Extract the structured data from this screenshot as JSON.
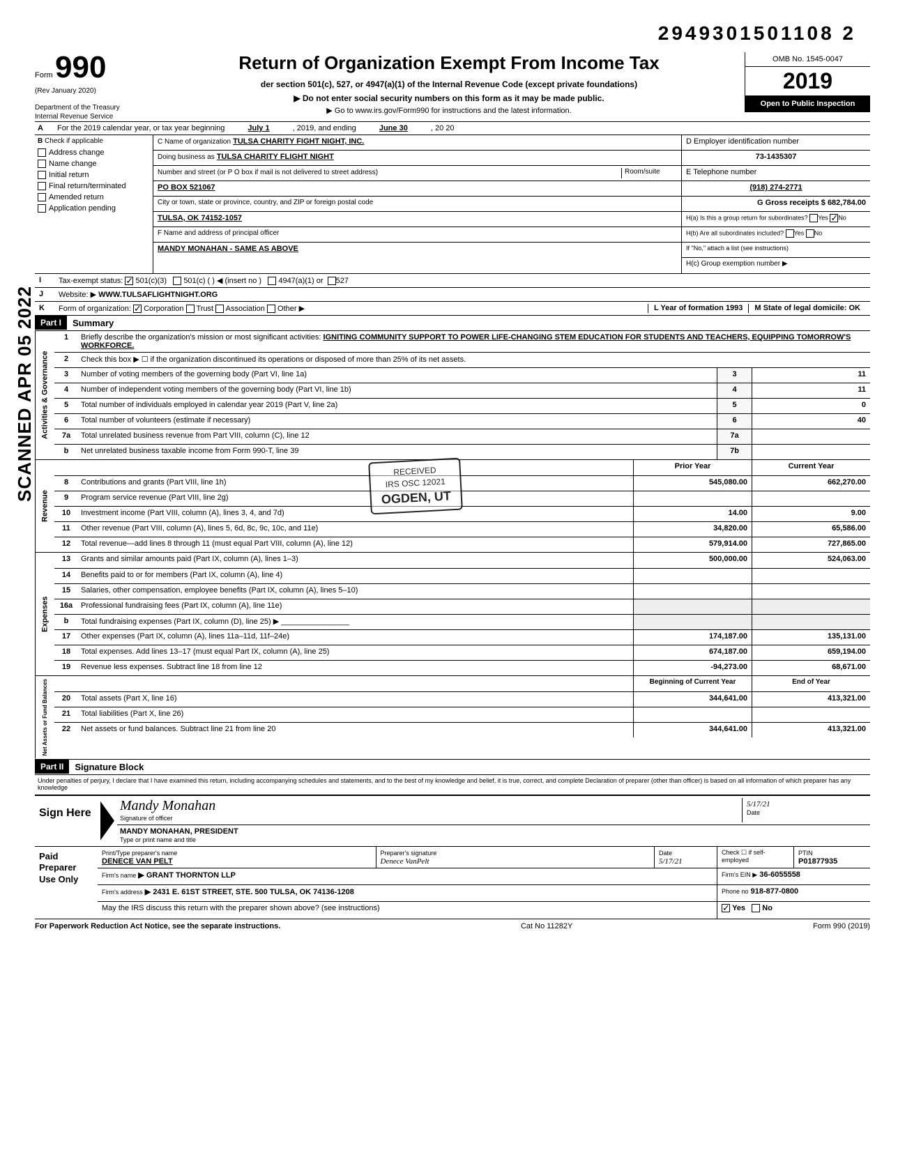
{
  "top_code": "2949301501108  2",
  "header": {
    "form_label": "Form",
    "form_number": "990",
    "rev": "(Rev  January 2020)",
    "dept": "Department of the Treasury\nInternal Revenue Service",
    "title": "Return of Organization Exempt From Income Tax",
    "subtitle": "der section 501(c), 527, or 4947(a)(1) of the Internal Revenue Code (except private foundations)",
    "note1": "▶ Do not enter social security numbers on this form as it may be made public.",
    "note2": "▶ Go to www.irs.gov/Form990 for instructions and the latest information.",
    "omb": "OMB No. 1545-0047",
    "year": "2019",
    "open": "Open to Public Inspection"
  },
  "lineA": {
    "text": "For the 2019 calendar year, or tax year beginning",
    "begin": "July 1",
    "mid": ", 2019, and ending",
    "end": "June 30",
    "yr": ", 20  20"
  },
  "boxB": {
    "header": "Check if applicable",
    "items": [
      "Address change",
      "Name change",
      "Initial return",
      "Final return/terminated",
      "Amended return",
      "Application pending"
    ]
  },
  "boxC": {
    "name_lbl": "C Name of organization",
    "name_val": "TULSA CHARITY FIGHT NIGHT, INC.",
    "dba_lbl": "Doing business as",
    "dba_val": "TULSA CHARITY FLIGHT NIGHT",
    "addr_lbl": "Number and street (or P O  box if mail is not delivered to street address)",
    "room_lbl": "Room/suite",
    "addr_val": "PO BOX 521067",
    "city_lbl": "City or town, state or province, country, and ZIP or foreign postal code",
    "city_val": "TULSA, OK 74152-1057",
    "officer_lbl": "F Name and address of principal officer",
    "officer_val": "MANDY MONAHAN - SAME AS ABOVE"
  },
  "boxD": {
    "lbl": "D Employer identification number",
    "val": "73-1435307",
    "e_lbl": "E Telephone number",
    "e_val": "(918) 274-2771",
    "g_lbl": "G Gross receipts $",
    "g_val": "682,784.00",
    "ha_lbl": "H(a) Is this a group return for subordinates?",
    "ha_yes": "Yes",
    "ha_no": "No",
    "hb_lbl": "H(b) Are all subordinates included?",
    "hb_note": "If \"No,\" attach a list  (see instructions)",
    "hc_lbl": "H(c) Group exemption number ▶"
  },
  "rowI": {
    "lbl": "Tax-exempt status:",
    "opts": [
      "501(c)(3)",
      "501(c) (",
      "4947(a)(1) or",
      "527"
    ],
    "insert": ") ◀ (insert no )"
  },
  "rowJ": {
    "lbl": "Website: ▶",
    "val": "WWW.TULSAFLIGHTNIGHT.ORG"
  },
  "rowK": {
    "lbl": "Form of organization:",
    "opts": [
      "Corporation",
      "Trust",
      "Association",
      "Other ▶"
    ],
    "year_lbl": "L Year of formation",
    "year_val": "1993",
    "state_lbl": "M State of legal domicile:",
    "state_val": "OK"
  },
  "partI": {
    "hdr": "Part I",
    "title": "Summary",
    "line1_lbl": "Briefly describe the organization's mission or most significant activities:",
    "line1_val": "IGNITING COMMUNITY SUPPORT TO POWER LIFE-CHANGING STEM EDUCATION FOR STUDENTS AND TEACHERS, EQUIPPING TOMORROW'S WORKFORCE.",
    "line2": "Check this box ▶ ☐ if the organization discontinued its operations or disposed of more than 25% of its net assets.",
    "rows_small": [
      {
        "n": "3",
        "t": "Number of voting members of the governing body (Part VI, line 1a)",
        "box": "3",
        "v": "11"
      },
      {
        "n": "4",
        "t": "Number of independent voting members of the governing body (Part VI, line 1b)",
        "box": "4",
        "v": "11"
      },
      {
        "n": "5",
        "t": "Total number of individuals employed in calendar year 2019 (Part V, line 2a)",
        "box": "5",
        "v": "0"
      },
      {
        "n": "6",
        "t": "Total number of volunteers (estimate if necessary)",
        "box": "6",
        "v": "40"
      },
      {
        "n": "7a",
        "t": "Total unrelated business revenue from Part VIII, column (C), line 12",
        "box": "7a",
        "v": ""
      },
      {
        "n": "b",
        "t": "Net unrelated business taxable income from Form 990-T, line 39",
        "box": "7b",
        "v": ""
      }
    ],
    "col_py": "Prior Year",
    "col_cy": "Current Year",
    "revenue_side": "Revenue",
    "gov_side": "Activities & Governance",
    "exp_side": "Expenses",
    "net_side": "Net Assets or Fund Balances",
    "rows_rev": [
      {
        "n": "8",
        "t": "Contributions and grants (Part VIII, line 1h)",
        "py": "545,080.00",
        "cy": "662,270.00"
      },
      {
        "n": "9",
        "t": "Program service revenue (Part VIII, line 2g)",
        "py": "",
        "cy": ""
      },
      {
        "n": "10",
        "t": "Investment income (Part VIII, column (A), lines 3, 4, and 7d)",
        "py": "14.00",
        "cy": "9.00"
      },
      {
        "n": "11",
        "t": "Other revenue (Part VIII, column (A), lines 5, 6d, 8c, 9c, 10c, and 11e)",
        "py": "34,820.00",
        "cy": "65,586.00"
      },
      {
        "n": "12",
        "t": "Total revenue—add lines 8 through 11 (must equal Part VIII, column (A), line 12)",
        "py": "579,914.00",
        "cy": "727,865.00"
      }
    ],
    "rows_exp": [
      {
        "n": "13",
        "t": "Grants and similar amounts paid (Part IX, column (A), lines 1–3)",
        "py": "500,000.00",
        "cy": "524,063.00"
      },
      {
        "n": "14",
        "t": "Benefits paid to or for members (Part IX, column (A), line 4)",
        "py": "",
        "cy": ""
      },
      {
        "n": "15",
        "t": "Salaries, other compensation, employee benefits (Part IX, column (A), lines 5–10)",
        "py": "",
        "cy": ""
      },
      {
        "n": "16a",
        "t": "Professional fundraising fees (Part IX, column (A), line  11e)",
        "py": "",
        "cy": ""
      },
      {
        "n": "b",
        "t": "Total fundraising expenses (Part IX, column (D), line 25) ▶  ________________",
        "py": "",
        "cy": ""
      },
      {
        "n": "17",
        "t": "Other expenses (Part IX, column (A), lines 11a–11d, 11f–24e)",
        "py": "174,187.00",
        "cy": "135,131.00"
      },
      {
        "n": "18",
        "t": "Total expenses. Add lines 13–17 (must equal Part IX, column (A), line 25)",
        "py": "674,187.00",
        "cy": "659,194.00"
      },
      {
        "n": "19",
        "t": "Revenue less expenses. Subtract line 18 from line 12",
        "py": "-94,273.00",
        "cy": "68,671.00"
      }
    ],
    "col_boy": "Beginning of Current Year",
    "col_eoy": "End of Year",
    "rows_net": [
      {
        "n": "20",
        "t": "Total assets (Part X, line 16)",
        "py": "344,641.00",
        "cy": "413,321.00"
      },
      {
        "n": "21",
        "t": "Total liabilities (Part X, line 26)",
        "py": "",
        "cy": ""
      },
      {
        "n": "22",
        "t": "Net assets or fund balances. Subtract line 21 from line 20",
        "py": "344,641.00",
        "cy": "413,321.00"
      }
    ]
  },
  "partII": {
    "hdr": "Part II",
    "title": "Signature Block",
    "penalty": "Under penalties of perjury, I declare that I have examined this return, including accompanying schedules and statements, and to the best of my knowledge  and belief, it is true, correct, and complete  Declaration of preparer (other than officer) is based on all information of which preparer has any knowledge",
    "sign_here": "Sign Here",
    "sig_lbl": "Signature of officer",
    "sig_name": "MANDY MONAHAN, PRESIDENT",
    "sig_type_lbl": "Type or print name and title",
    "date_lbl": "Date",
    "date_val": "5/17/21",
    "paid": "Paid Preparer Use Only",
    "prep_name_lbl": "Print/Type preparer's name",
    "prep_name": "DENECE VAN PELT",
    "prep_sig_lbl": "Preparer's signature",
    "prep_date": "5/17/21",
    "check_self": "Check ☐ if self-employed",
    "ptin_lbl": "PTIN",
    "ptin": "P01877935",
    "firm_lbl": "Firm's name",
    "firm": "▶ GRANT THORNTON LLP",
    "firm_ein_lbl": "Firm's EIN ▶",
    "firm_ein": "36-6055558",
    "firm_addr_lbl": "Firm's address",
    "firm_addr": "▶ 2431 E. 61ST STREET, STE. 500    TULSA, OK 74136-1208",
    "phone_lbl": "Phone no",
    "phone": "918-877-0800",
    "discuss": "May the IRS discuss this return with the preparer shown above? (see instructions)",
    "discuss_yes": "Yes",
    "discuss_no": "No"
  },
  "footer": {
    "left": "For Paperwork Reduction Act Notice, see the separate instructions.",
    "mid": "Cat  No  11282Y",
    "right": "Form 990 (2019)"
  },
  "stamps": {
    "scanned": "SCANNED APR 05 2022",
    "received1": "RECEIVED",
    "received2": "IRS OSC 12021",
    "received3": "OGDEN, UT"
  }
}
